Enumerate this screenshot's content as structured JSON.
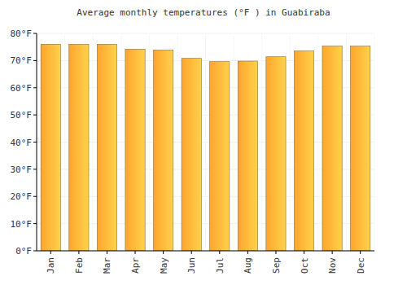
{
  "chart_data": {
    "type": "bar",
    "title": "Average monthly temperatures (°F ) in Guabiraba",
    "categories": [
      "Jan",
      "Feb",
      "Mar",
      "Apr",
      "May",
      "Jun",
      "Jul",
      "Aug",
      "Sep",
      "Oct",
      "Nov",
      "Dec"
    ],
    "values": [
      76,
      76,
      76,
      74.2,
      73.8,
      70.8,
      69.6,
      69.8,
      71.4,
      73.5,
      75.3,
      75.3
    ],
    "color": "#ffa52e",
    "ylim": [
      0,
      80
    ],
    "yticks": [
      {
        "value": 0,
        "label": "0°F"
      },
      {
        "value": 10,
        "label": "10°F"
      },
      {
        "value": 20,
        "label": "20°F"
      },
      {
        "value": 30,
        "label": "30°F"
      },
      {
        "value": 40,
        "label": "40°F"
      },
      {
        "value": 50,
        "label": "50°F"
      },
      {
        "value": 60,
        "label": "60°F"
      },
      {
        "value": 70,
        "label": "70°F"
      },
      {
        "value": 80,
        "label": "80°F"
      }
    ],
    "grid": true
  }
}
